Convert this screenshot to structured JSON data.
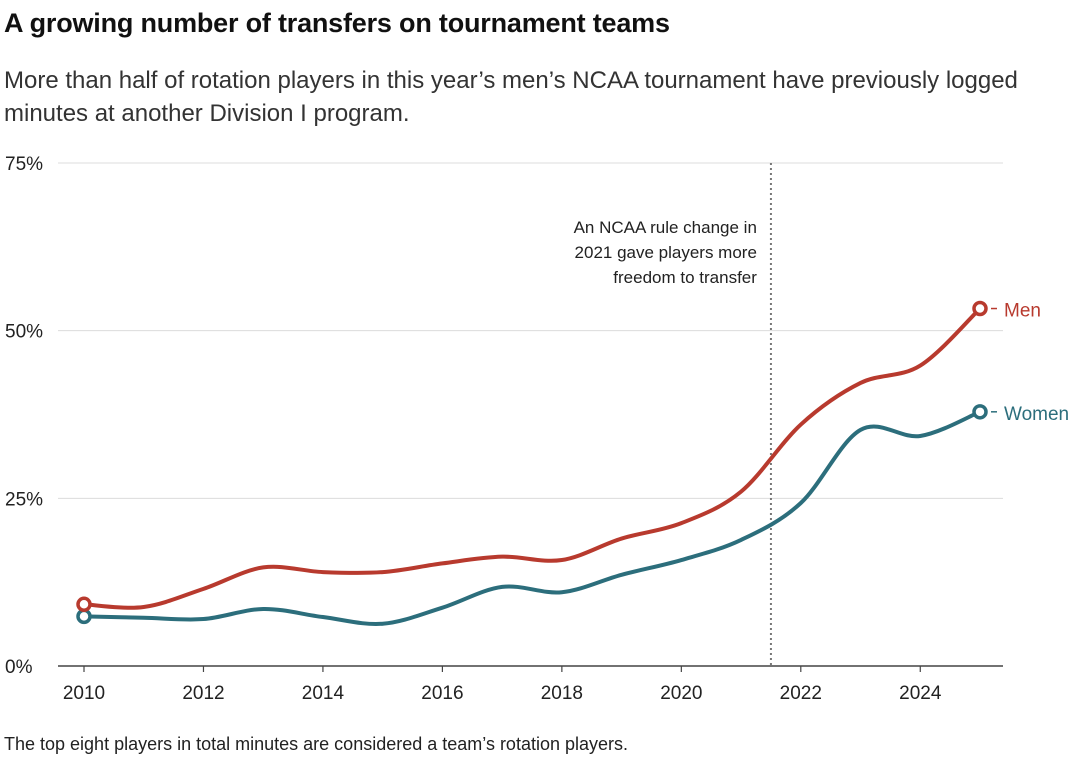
{
  "title": "A growing number of transfers on tournament teams",
  "subtitle": "More than half of rotation players in this year’s men’s NCAA tournament have previously logged minutes at another Division I program.",
  "note": "The top eight players in total minutes are considered a team’s rotation players.",
  "chart_data": {
    "type": "line",
    "x": [
      2010,
      2011,
      2012,
      2013,
      2014,
      2015,
      2016,
      2017,
      2018,
      2019,
      2020,
      2021,
      2022,
      2023,
      2024,
      2025
    ],
    "series": [
      {
        "name": "Men",
        "color": "#b83a2e",
        "values": [
          9.2,
          8.8,
          11.5,
          14.7,
          14.0,
          14.0,
          15.3,
          16.3,
          15.8,
          19.0,
          21.3,
          26.0,
          36.0,
          42.2,
          44.8,
          53.3
        ]
      },
      {
        "name": "Women",
        "color": "#2c6e7c",
        "values": [
          7.4,
          7.2,
          7.0,
          8.5,
          7.3,
          6.3,
          8.7,
          11.8,
          11.0,
          13.6,
          15.8,
          18.8,
          24.3,
          35.2,
          34.3,
          37.9
        ]
      }
    ],
    "y_ticks": [
      "0%",
      "25%",
      "50%",
      "75%"
    ],
    "x_ticks": [
      "2010",
      "2012",
      "2014",
      "2016",
      "2018",
      "2020",
      "2022",
      "2024"
    ],
    "ylim": [
      0,
      75
    ],
    "xlim": [
      2010,
      2025
    ],
    "grid": true,
    "annotation": {
      "x": 2021.5,
      "lines": [
        "An NCAA rule change in",
        "2021 gave players more",
        "freedom to transfer"
      ]
    }
  }
}
